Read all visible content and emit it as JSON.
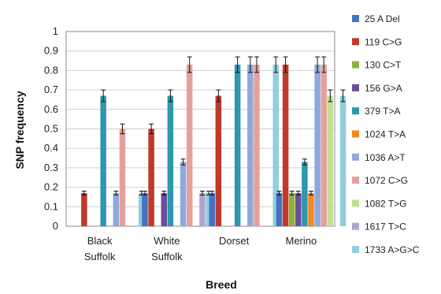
{
  "chart_data": {
    "type": "bar",
    "xlabel": "Breed",
    "ylabel": "SNP frequency",
    "ylim": [
      0,
      1
    ],
    "yticks": [
      "0",
      "0.1",
      "0.2",
      "0.3",
      "0.4",
      "0.5",
      "0.6",
      "0.7",
      "0.8",
      "0.9",
      "1"
    ],
    "categories": [
      {
        "lines": [
          "Black",
          "Suffolk"
        ]
      },
      {
        "lines": [
          "White",
          "Suffolk"
        ]
      },
      {
        "lines": [
          "Dorset"
        ]
      },
      {
        "lines": [
          "Merino"
        ]
      }
    ],
    "grid": "horizontal",
    "legend_position": "right",
    "series": [
      {
        "name": "25 A Del",
        "color": "#4472C4",
        "values": [
          0,
          0.17,
          0.17,
          0.17
        ],
        "errors": [
          0,
          0.01,
          0.01,
          0.01
        ]
      },
      {
        "name": "119 C>G",
        "color": "#C0392B",
        "values": [
          0.17,
          0.5,
          0.67,
          0.83
        ],
        "errors": [
          0.01,
          0.025,
          0.03,
          0.04
        ]
      },
      {
        "name": "130 C>T",
        "color": "#8DB33D",
        "values": [
          0,
          0,
          0,
          0.17
        ],
        "errors": [
          0,
          0,
          0,
          0.01
        ]
      },
      {
        "name": "156 G>A",
        "color": "#6B4E9B",
        "values": [
          0,
          0.17,
          0,
          0.17
        ],
        "errors": [
          0,
          0.01,
          0,
          0.01
        ]
      },
      {
        "name": "379 T>A",
        "color": "#2E97AE",
        "values": [
          0.67,
          0.67,
          0.83,
          0.33
        ],
        "errors": [
          0.03,
          0.03,
          0.04,
          0.015
        ]
      },
      {
        "name": "1024 T>A",
        "color": "#F08A24",
        "values": [
          0,
          0,
          0,
          0.17
        ],
        "errors": [
          0,
          0,
          0,
          0.01
        ]
      },
      {
        "name": "1036 A>T",
        "color": "#8EA9DB",
        "values": [
          0.17,
          0.33,
          0.83,
          0.83
        ],
        "errors": [
          0.01,
          0.015,
          0.04,
          0.04
        ]
      },
      {
        "name": "1072 C>G",
        "color": "#E6A09C",
        "values": [
          0.5,
          0.83,
          0.83,
          0.83
        ],
        "errors": [
          0.025,
          0.04,
          0.04,
          0.04
        ]
      },
      {
        "name": "1082 T>G",
        "color": "#C3DE95",
        "values": [
          0,
          0,
          0,
          0.67
        ],
        "errors": [
          0,
          0,
          0,
          0.03
        ]
      },
      {
        "name": "1617 T>C",
        "color": "#B3A3CF",
        "values": [
          0,
          0.17,
          0,
          0
        ],
        "errors": [
          0,
          0.01,
          0,
          0
        ]
      },
      {
        "name": "1733 A>G>C",
        "color": "#92CDDC",
        "values": [
          0.17,
          0.17,
          0.83,
          0.67
        ],
        "errors": [
          0.01,
          0.01,
          0.04,
          0.03
        ]
      }
    ]
  }
}
